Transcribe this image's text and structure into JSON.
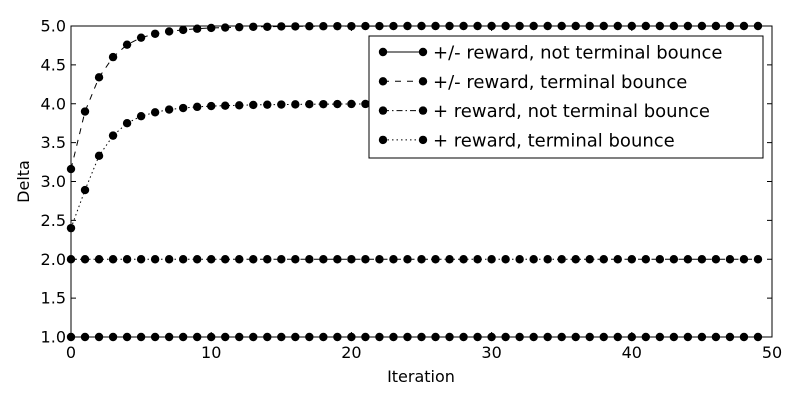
{
  "chart_data": {
    "type": "line",
    "title": "",
    "xlabel": "Iteration",
    "ylabel": "Delta",
    "xlim": [
      0,
      50
    ],
    "ylim": [
      1.0,
      5.0
    ],
    "xticks": [
      0,
      10,
      20,
      30,
      40,
      50
    ],
    "yticks": [
      1.0,
      1.5,
      2.0,
      2.5,
      3.0,
      3.5,
      4.0,
      4.5,
      5.0
    ],
    "ytick_labels": [
      "1.0",
      "1.5",
      "2.0",
      "2.5",
      "3.0",
      "3.5",
      "4.0",
      "4.5",
      "5.0"
    ],
    "x": [
      0,
      1,
      2,
      3,
      4,
      5,
      6,
      7,
      8,
      9,
      10,
      11,
      12,
      13,
      14,
      15,
      16,
      17,
      18,
      19,
      20,
      21,
      22,
      23,
      24,
      25,
      26,
      27,
      28,
      29,
      30,
      31,
      32,
      33,
      34,
      35,
      36,
      37,
      38,
      39,
      40,
      41,
      42,
      43,
      44,
      45,
      46,
      47,
      48,
      49
    ],
    "legend_position": "top-right",
    "grid": false,
    "series": [
      {
        "name": "+/- reward, not terminal bounce",
        "linestyle": "solid",
        "values": [
          1,
          1,
          1,
          1,
          1,
          1,
          1,
          1,
          1,
          1,
          1,
          1,
          1,
          1,
          1,
          1,
          1,
          1,
          1,
          1,
          1,
          1,
          1,
          1,
          1,
          1,
          1,
          1,
          1,
          1,
          1,
          1,
          1,
          1,
          1,
          1,
          1,
          1,
          1,
          1,
          1,
          1,
          1,
          1,
          1,
          1,
          1,
          1,
          1,
          1
        ]
      },
      {
        "name": "+/- reward, terminal bounce",
        "linestyle": "dashed",
        "values": [
          3.16,
          3.9,
          4.34,
          4.6,
          4.76,
          4.85,
          4.9,
          4.93,
          4.95,
          4.965,
          4.975,
          4.98,
          4.985,
          4.99,
          4.99,
          4.995,
          4.995,
          4.997,
          4.997,
          4.998,
          4.998,
          4.999,
          4.999,
          4.999,
          5,
          5,
          5,
          5,
          5,
          5,
          5,
          5,
          5,
          5,
          5,
          5,
          5,
          5,
          5,
          5,
          5,
          5,
          5,
          5,
          5,
          5,
          5,
          5,
          5,
          5
        ]
      },
      {
        "name": "+ reward, not terminal bounce",
        "linestyle": "dashdot",
        "values": [
          2,
          2,
          2,
          2,
          2,
          2,
          2,
          2,
          2,
          2,
          2,
          2,
          2,
          2,
          2,
          2,
          2,
          2,
          2,
          2,
          2,
          2,
          2,
          2,
          2,
          2,
          2,
          2,
          2,
          2,
          2,
          2,
          2,
          2,
          2,
          2,
          2,
          2,
          2,
          2,
          2,
          2,
          2,
          2,
          2,
          2,
          2,
          2,
          2,
          2
        ]
      },
      {
        "name": "+ reward, terminal bounce",
        "linestyle": "dotted",
        "values": [
          2.4,
          2.89,
          3.33,
          3.59,
          3.75,
          3.84,
          3.89,
          3.925,
          3.945,
          3.96,
          3.97,
          3.975,
          3.98,
          3.985,
          3.988,
          3.99,
          3.992,
          3.994,
          3.995,
          3.996,
          3.997,
          3.997,
          3.998,
          3.998,
          3.998,
          3.999,
          3.999,
          3.999,
          3.999,
          4,
          4,
          4,
          4,
          4,
          4,
          4,
          4,
          4,
          4,
          4,
          4,
          4,
          4,
          4,
          4,
          4,
          4,
          4,
          4,
          4
        ]
      }
    ]
  }
}
